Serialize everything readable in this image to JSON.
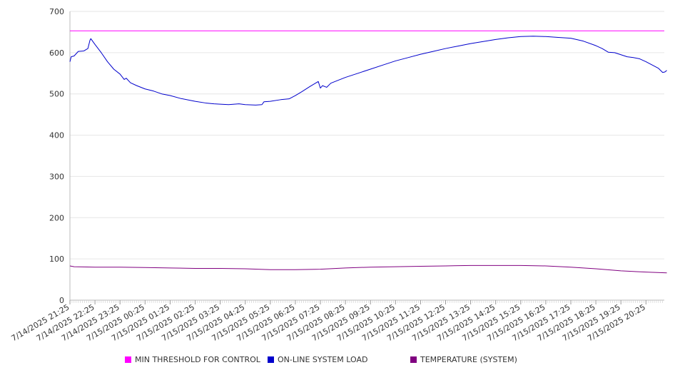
{
  "chart_data": {
    "type": "line",
    "title": "",
    "xlabel": "",
    "ylabel": "",
    "ylim": [
      0,
      700
    ],
    "y_ticks": [
      "0",
      "100",
      "200",
      "300",
      "400",
      "500",
      "600",
      "700"
    ],
    "x_tick_labels": [
      "7/14/2025 21:25",
      "7/14/2025 22:25",
      "7/14/2025 23:25",
      "7/15/2025 00:25",
      "7/15/2025 01:25",
      "7/15/2025 02:25",
      "7/15/2025 03:25",
      "7/15/2025 04:25",
      "7/15/2025 05:25",
      "7/15/2025 06:25",
      "7/15/2025 07:25",
      "7/15/2025 08:25",
      "7/15/2025 09:25",
      "7/15/2025 10:25",
      "7/15/2025 11:25",
      "7/15/2025 12:25",
      "7/15/2025 13:25",
      "7/15/2025 14:25",
      "7/15/2025 15:25",
      "7/15/2025 16:25",
      "7/15/2025 17:25",
      "7/15/2025 18:25",
      "7/15/2025 19:25",
      "7/15/2025 20:25"
    ],
    "grid": true,
    "legend_position": "bottom",
    "series": [
      {
        "name": "MIN THRESHOLD FOR CONTROL",
        "color": "#ff00ff",
        "points": [
          [
            "7/14/2025 21:25",
            653
          ],
          [
            "7/15/2025 21:25",
            653
          ]
        ]
      },
      {
        "name": "ON-LINE SYSTEM LOAD",
        "color": "#0000cc",
        "points": [
          [
            "7/14/2025 21:25",
            578
          ],
          [
            "7/14/2025 21:28",
            590
          ],
          [
            "7/14/2025 21:35",
            592
          ],
          [
            "7/14/2025 21:45",
            603
          ],
          [
            "7/14/2025 21:58",
            604
          ],
          [
            "7/14/2025 22:08",
            610
          ],
          [
            "7/14/2025 22:13",
            630
          ],
          [
            "7/14/2025 22:15",
            634
          ],
          [
            "7/14/2025 22:25",
            620
          ],
          [
            "7/14/2025 22:40",
            600
          ],
          [
            "7/14/2025 22:55",
            578
          ],
          [
            "7/14/2025 23:10",
            560
          ],
          [
            "7/14/2025 23:25",
            548
          ],
          [
            "7/14/2025 23:35",
            535
          ],
          [
            "7/14/2025 23:40",
            538
          ],
          [
            "7/14/2025 23:50",
            527
          ],
          [
            "7/15/2025 00:05",
            520
          ],
          [
            "7/15/2025 00:25",
            512
          ],
          [
            "7/15/2025 00:45",
            507
          ],
          [
            "7/15/2025 01:05",
            500
          ],
          [
            "7/15/2025 01:25",
            496
          ],
          [
            "7/15/2025 01:50",
            489
          ],
          [
            "7/15/2025 02:25",
            482
          ],
          [
            "7/15/2025 02:50",
            478
          ],
          [
            "7/15/2025 03:10",
            476
          ],
          [
            "7/15/2025 03:25",
            475
          ],
          [
            "7/15/2025 03:45",
            474
          ],
          [
            "7/15/2025 04:10",
            476
          ],
          [
            "7/15/2025 04:25",
            474
          ],
          [
            "7/15/2025 04:50",
            473
          ],
          [
            "7/15/2025 05:05",
            474
          ],
          [
            "7/15/2025 05:10",
            481
          ],
          [
            "7/15/2025 05:25",
            482
          ],
          [
            "7/15/2025 05:50",
            486
          ],
          [
            "7/15/2025 06:10",
            488
          ],
          [
            "7/15/2025 06:25",
            496
          ],
          [
            "7/15/2025 06:40",
            505
          ],
          [
            "7/15/2025 07:00",
            518
          ],
          [
            "7/15/2025 07:15",
            527
          ],
          [
            "7/15/2025 07:20",
            530
          ],
          [
            "7/15/2025 07:25",
            514
          ],
          [
            "7/15/2025 07:30",
            520
          ],
          [
            "7/15/2025 07:40",
            516
          ],
          [
            "7/15/2025 07:50",
            526
          ],
          [
            "7/15/2025 08:05",
            532
          ],
          [
            "7/15/2025 08:25",
            540
          ],
          [
            "7/15/2025 08:55",
            550
          ],
          [
            "7/15/2025 09:25",
            560
          ],
          [
            "7/15/2025 09:55",
            570
          ],
          [
            "7/15/2025 10:25",
            580
          ],
          [
            "7/15/2025 10:55",
            588
          ],
          [
            "7/15/2025 11:25",
            596
          ],
          [
            "7/15/2025 11:55",
            603
          ],
          [
            "7/15/2025 12:25",
            610
          ],
          [
            "7/15/2025 12:55",
            616
          ],
          [
            "7/15/2025 13:25",
            622
          ],
          [
            "7/15/2025 13:55",
            627
          ],
          [
            "7/15/2025 14:25",
            632
          ],
          [
            "7/15/2025 14:55",
            636
          ],
          [
            "7/15/2025 15:25",
            639
          ],
          [
            "7/15/2025 15:55",
            640
          ],
          [
            "7/15/2025 16:25",
            639
          ],
          [
            "7/15/2025 16:55",
            637
          ],
          [
            "7/15/2025 17:25",
            635
          ],
          [
            "7/15/2025 17:55",
            628
          ],
          [
            "7/15/2025 18:25",
            617
          ],
          [
            "7/15/2025 18:40",
            610
          ],
          [
            "7/15/2025 18:55",
            601
          ],
          [
            "7/15/2025 19:10",
            600
          ],
          [
            "7/15/2025 19:25",
            595
          ],
          [
            "7/15/2025 19:40",
            590
          ],
          [
            "7/15/2025 19:55",
            588
          ],
          [
            "7/15/2025 20:10",
            585
          ],
          [
            "7/15/2025 20:25",
            578
          ],
          [
            "7/15/2025 20:40",
            570
          ],
          [
            "7/15/2025 20:55",
            562
          ],
          [
            "7/15/2025 21:05",
            552
          ],
          [
            "7/15/2025 21:10",
            553
          ],
          [
            "7/15/2025 21:15",
            557
          ]
        ]
      },
      {
        "name": "TEMPERATURE (SYSTEM)",
        "color": "#800080",
        "points": [
          [
            "7/14/2025 21:25",
            83
          ],
          [
            "7/14/2025 21:35",
            81
          ],
          [
            "7/14/2025 22:25",
            80
          ],
          [
            "7/14/2025 23:25",
            80
          ],
          [
            "7/15/2025 00:25",
            79
          ],
          [
            "7/15/2025 01:25",
            78
          ],
          [
            "7/15/2025 02:25",
            77
          ],
          [
            "7/15/2025 03:25",
            77
          ],
          [
            "7/15/2025 04:25",
            76
          ],
          [
            "7/15/2025 05:25",
            74
          ],
          [
            "7/15/2025 06:25",
            74
          ],
          [
            "7/15/2025 07:25",
            75
          ],
          [
            "7/15/2025 08:25",
            78
          ],
          [
            "7/15/2025 09:25",
            80
          ],
          [
            "7/15/2025 10:25",
            81
          ],
          [
            "7/15/2025 11:25",
            82
          ],
          [
            "7/15/2025 12:25",
            83
          ],
          [
            "7/15/2025 13:25",
            84
          ],
          [
            "7/15/2025 14:25",
            84
          ],
          [
            "7/15/2025 15:25",
            84
          ],
          [
            "7/15/2025 16:25",
            83
          ],
          [
            "7/15/2025 17:25",
            80
          ],
          [
            "7/15/2025 18:25",
            76
          ],
          [
            "7/15/2025 19:25",
            71
          ],
          [
            "7/15/2025 20:25",
            68
          ],
          [
            "7/15/2025 21:15",
            66
          ]
        ]
      }
    ]
  }
}
